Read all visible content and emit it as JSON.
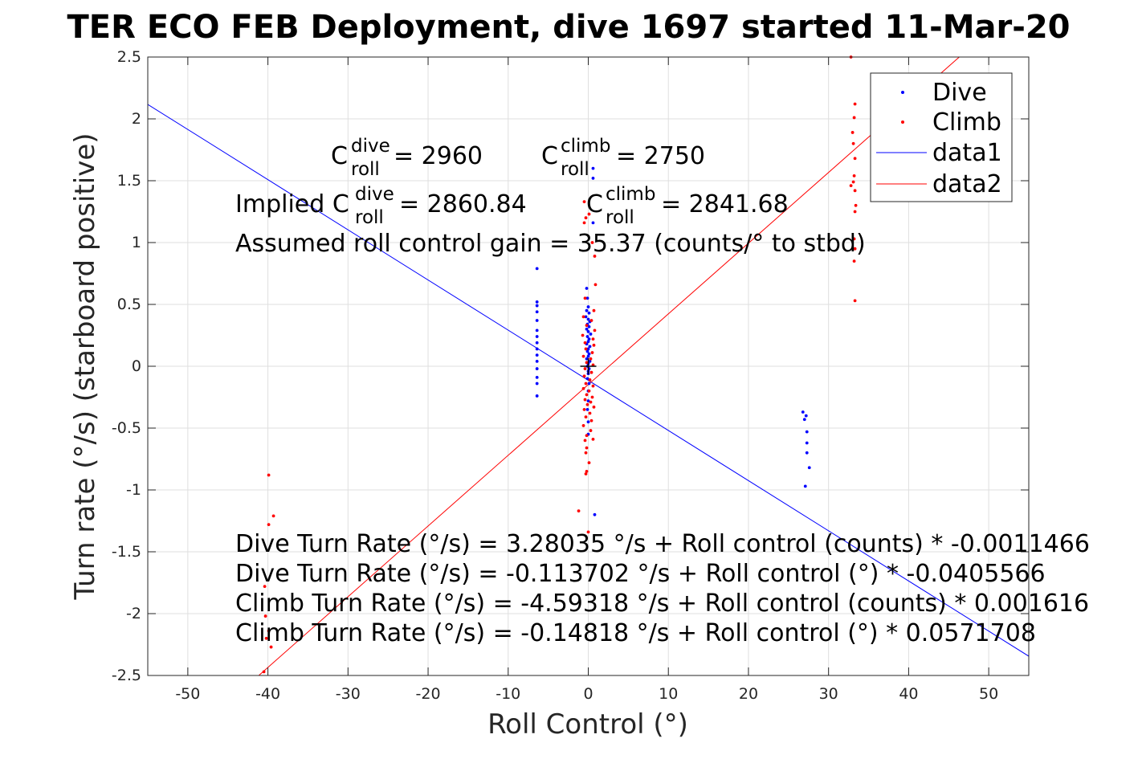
{
  "chart_data": {
    "type": "scatter",
    "title": "TER ECO FEB Deployment, dive 1697 started 11-Mar-20",
    "xlabel": "Roll Control (°)",
    "ylabel": "Turn rate (°/s) (starboard positive)",
    "xlim": [
      -55,
      55
    ],
    "ylim": [
      -2.5,
      2.5
    ],
    "x_ticks": [
      -50,
      -40,
      -30,
      -20,
      -10,
      0,
      10,
      20,
      30,
      40,
      50
    ],
    "x_tick_labels": [
      "-50",
      "-40",
      "-30",
      "-20",
      "-10",
      "0",
      "10",
      "20",
      "30",
      "40",
      "50"
    ],
    "y_ticks": [
      2.5,
      2,
      1.5,
      1,
      0.5,
      0,
      -0.5,
      -1,
      -1.5,
      -2,
      -2.5
    ],
    "y_tick_labels": [
      "2.5",
      "2",
      "1.5",
      "1",
      "0.5",
      "0",
      "-0.5",
      "-1",
      "-1.5",
      "-2",
      "-2.5"
    ],
    "grid": true,
    "legend_position": "top-right",
    "colors": {
      "dive": "#0000ff",
      "climb": "#ff0000",
      "axis": "#262626",
      "grid": "#dfdfdf"
    },
    "series": [
      {
        "name": "Dive",
        "kind": "points",
        "color": "#0000ff",
        "points": [
          [
            -6.4,
            0.79
          ],
          [
            -6.4,
            0.52
          ],
          [
            -6.4,
            0.49
          ],
          [
            -6.4,
            0.44
          ],
          [
            -6.4,
            0.37
          ],
          [
            -6.4,
            0.29
          ],
          [
            -6.4,
            0.24
          ],
          [
            -6.4,
            0.19
          ],
          [
            -6.4,
            0.14
          ],
          [
            -6.4,
            0.09
          ],
          [
            -6.4,
            0.04
          ],
          [
            -6.4,
            -0.02
          ],
          [
            -6.4,
            -0.09
          ],
          [
            -6.4,
            -0.14
          ],
          [
            -6.4,
            -0.24
          ],
          [
            0.6,
            1.6
          ],
          [
            0.6,
            1.52
          ],
          [
            0.6,
            1.16
          ],
          [
            0.8,
            -1.2
          ],
          [
            -0.2,
            0.63
          ],
          [
            -0.1,
            0.55
          ],
          [
            0.0,
            0.48
          ],
          [
            -0.2,
            0.45
          ],
          [
            0.1,
            0.43
          ],
          [
            -0.3,
            0.4
          ],
          [
            0.0,
            0.38
          ],
          [
            0.2,
            0.36
          ],
          [
            -0.1,
            0.34
          ],
          [
            0.1,
            0.32
          ],
          [
            -0.2,
            0.3
          ],
          [
            0.0,
            0.28
          ],
          [
            0.3,
            0.26
          ],
          [
            -0.1,
            0.24
          ],
          [
            0.1,
            0.22
          ],
          [
            0.0,
            0.2
          ],
          [
            -0.2,
            0.18
          ],
          [
            0.2,
            0.16
          ],
          [
            0.0,
            0.14
          ],
          [
            -0.1,
            0.12
          ],
          [
            0.1,
            0.1
          ],
          [
            0.0,
            0.08
          ],
          [
            -0.2,
            0.06
          ],
          [
            0.2,
            0.04
          ],
          [
            0.0,
            0.02
          ],
          [
            -0.1,
            0.0
          ],
          [
            0.1,
            -0.02
          ],
          [
            0.0,
            -0.04
          ],
          [
            0.0,
            -0.06
          ],
          [
            -0.1,
            -0.1
          ],
          [
            0.1,
            -0.14
          ],
          [
            0.0,
            -0.2
          ],
          [
            0.0,
            -0.28
          ],
          [
            -0.1,
            -0.35
          ],
          [
            0.0,
            -0.45
          ],
          [
            0.0,
            -0.55
          ],
          [
            26.8,
            -0.37
          ],
          [
            27.2,
            -0.4
          ],
          [
            27.0,
            -0.43
          ],
          [
            27.3,
            -0.53
          ],
          [
            27.3,
            -0.62
          ],
          [
            27.3,
            -0.7
          ],
          [
            27.6,
            -0.82
          ],
          [
            27.1,
            -0.97
          ]
        ]
      },
      {
        "name": "Climb",
        "kind": "points",
        "color": "#ff0000",
        "points": [
          [
            32.8,
            2.5
          ],
          [
            33.3,
            2.12
          ],
          [
            33.2,
            2.01
          ],
          [
            33.0,
            1.89
          ],
          [
            33.1,
            1.8
          ],
          [
            33.3,
            1.68
          ],
          [
            33.2,
            1.54
          ],
          [
            33.1,
            1.49
          ],
          [
            32.8,
            1.46
          ],
          [
            33.3,
            1.42
          ],
          [
            33.4,
            1.3
          ],
          [
            33.3,
            1.25
          ],
          [
            33.2,
            1.03
          ],
          [
            33.3,
            0.95
          ],
          [
            33.2,
            0.85
          ],
          [
            33.3,
            0.53
          ],
          [
            -40.4,
            -1.78
          ],
          [
            -40.3,
            -2.02
          ],
          [
            -40.2,
            -2.2
          ],
          [
            -40.5,
            -2.47
          ],
          [
            -39.9,
            -2.14
          ],
          [
            -39.6,
            -2.27
          ],
          [
            -39.9,
            -1.28
          ],
          [
            -39.3,
            -1.21
          ],
          [
            -39.9,
            -0.88
          ],
          [
            -0.5,
            1.33
          ],
          [
            -0.3,
            1.2
          ],
          [
            -0.5,
            1.16
          ],
          [
            0.1,
            1.23
          ],
          [
            0.5,
            1.0
          ],
          [
            0.8,
            0.89
          ],
          [
            0.9,
            0.66
          ],
          [
            -0.4,
            0.55
          ],
          [
            0.7,
            0.45
          ],
          [
            -0.6,
            0.4
          ],
          [
            0.4,
            0.37
          ],
          [
            -0.2,
            0.33
          ],
          [
            0.8,
            0.29
          ],
          [
            -0.7,
            0.25
          ],
          [
            0.6,
            0.22
          ],
          [
            -0.4,
            0.19
          ],
          [
            0.7,
            0.17
          ],
          [
            -0.3,
            0.14
          ],
          [
            0.5,
            0.11
          ],
          [
            -0.6,
            0.08
          ],
          [
            0.3,
            0.06
          ],
          [
            -0.2,
            0.03
          ],
          [
            0.6,
            0.01
          ],
          [
            -0.4,
            -0.02
          ],
          [
            0.4,
            -0.05
          ],
          [
            -0.5,
            -0.08
          ],
          [
            0.2,
            -0.11
          ],
          [
            -0.3,
            -0.14
          ],
          [
            0.6,
            -0.16
          ],
          [
            -0.6,
            -0.18
          ],
          [
            0.1,
            -0.2
          ],
          [
            -0.2,
            -0.23
          ],
          [
            0.5,
            -0.25
          ],
          [
            -0.4,
            -0.27
          ],
          [
            0.3,
            -0.29
          ],
          [
            -0.1,
            -0.31
          ],
          [
            0.7,
            -0.33
          ],
          [
            -0.5,
            -0.35
          ],
          [
            0.2,
            -0.38
          ],
          [
            -0.3,
            -0.41
          ],
          [
            0.4,
            -0.44
          ],
          [
            -0.6,
            -0.48
          ],
          [
            0.3,
            -0.52
          ],
          [
            -0.2,
            -0.56
          ],
          [
            0.6,
            -0.59
          ],
          [
            -0.4,
            -0.6
          ],
          [
            -0.2,
            -0.66
          ],
          [
            -0.3,
            -0.7
          ],
          [
            0.1,
            -0.78
          ],
          [
            -0.2,
            -0.85
          ],
          [
            -0.3,
            -0.87
          ],
          [
            -1.2,
            -1.17
          ],
          [
            0.0,
            -1.34
          ]
        ]
      },
      {
        "name": "data1",
        "kind": "line",
        "color": "#0000ff",
        "intercept": -0.113702,
        "slope": -0.0405566
      },
      {
        "name": "data2",
        "kind": "line",
        "color": "#ff0000",
        "intercept": -0.14818,
        "slope": 0.0571708
      }
    ],
    "center_marker": [
      0,
      0
    ],
    "annotations": {
      "c_dive": {
        "prefix": "C",
        "sup": "dive",
        "sub": "roll",
        "suffix": " = 2960"
      },
      "c_climb": {
        "prefix": "C",
        "sup": "climb",
        "sub": "roll",
        "suffix": " = 2750"
      },
      "implied_dive": {
        "prefix": "Implied C",
        "sup": "dive",
        "sub": "roll",
        "suffix": " = 2860.84"
      },
      "implied_climb": {
        "prefix": "C",
        "sup": "climb",
        "sub": "roll",
        "suffix": " = 2841.68"
      },
      "gain": "Assumed roll control gain = 35.37 (counts/° to stbd)",
      "equations": [
        "Dive Turn Rate (°/s) = 3.28035 °/s + Roll control (counts) * -0.0011466",
        "Dive Turn Rate (°/s) = -0.113702 °/s + Roll control (°) * -0.0405566",
        "Climb Turn Rate (°/s) = -4.59318 °/s + Roll control (counts) * 0.001616",
        "Climb Turn Rate (°/s) = -0.14818 °/s + Roll control (°) * 0.0571708"
      ]
    }
  }
}
